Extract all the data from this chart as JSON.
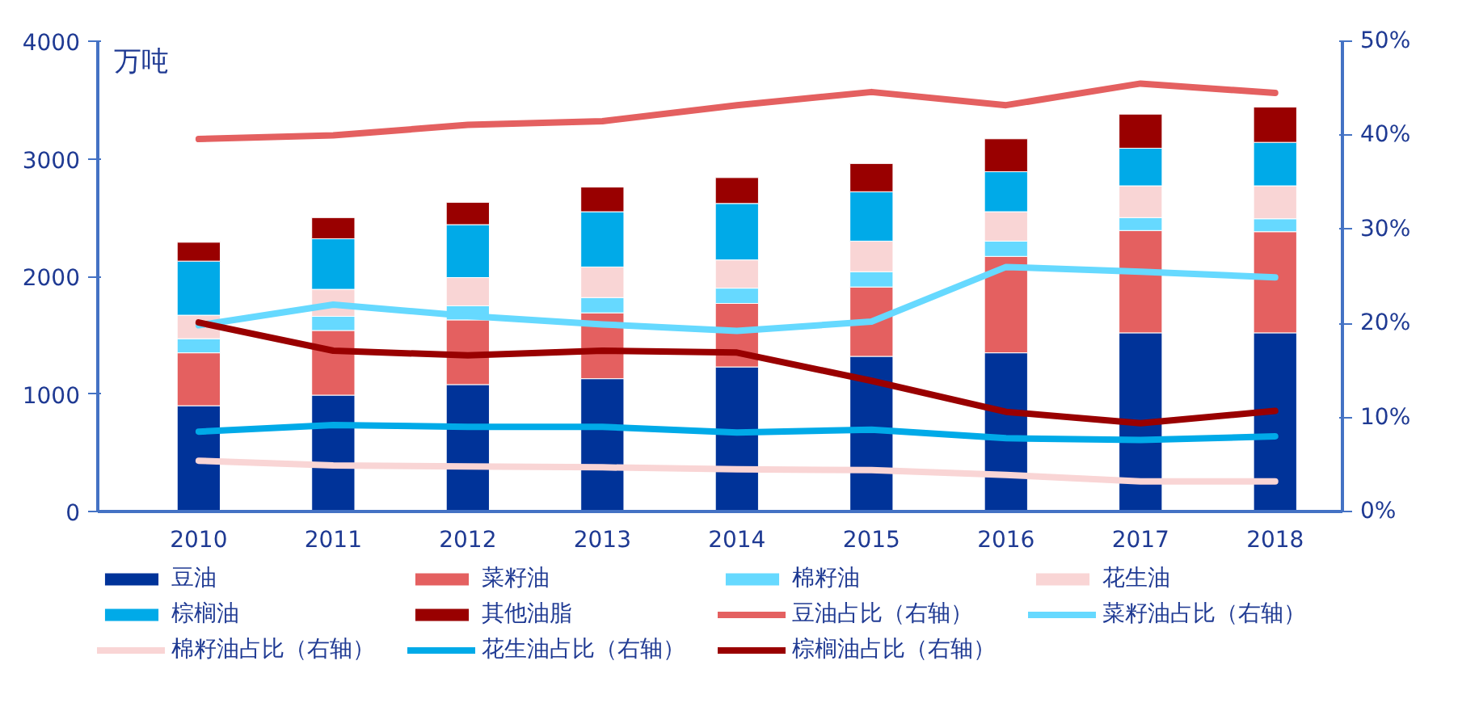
{
  "chart_data": {
    "type": "bar",
    "stacked": true,
    "ylabel": "万吨",
    "categories": [
      "2010",
      "2011",
      "2012",
      "2013",
      "2014",
      "2015",
      "2016",
      "2017",
      "2018"
    ],
    "ylim": [
      0,
      4000
    ],
    "yticks": [
      0,
      1000,
      2000,
      3000,
      4000
    ],
    "y2lim": [
      0,
      50
    ],
    "y2ticks": [
      {
        "value": 0,
        "label": "0%"
      },
      {
        "value": 10,
        "label": "10%"
      },
      {
        "value": 20,
        "label": "20%"
      },
      {
        "value": 30,
        "label": "30%"
      },
      {
        "value": 40,
        "label": "40%"
      },
      {
        "value": 50,
        "label": "50%"
      }
    ],
    "grid": false,
    "legend": "bottom",
    "line_style": "solid",
    "marker": "none",
    "series": [
      {
        "name": "豆油",
        "color": "#003399",
        "values": [
          900,
          990,
          1080,
          1130,
          1230,
          1320,
          1350,
          1520,
          1520
        ]
      },
      {
        "name": "菜籽油",
        "color": "#e46060",
        "values": [
          450,
          550,
          550,
          560,
          540,
          590,
          820,
          870,
          860
        ]
      },
      {
        "name": "棉籽油",
        "color": "#66d9ff",
        "values": [
          120,
          120,
          120,
          130,
          130,
          130,
          130,
          110,
          110
        ]
      },
      {
        "name": "花生油",
        "color": "#f9d5d5",
        "values": [
          200,
          230,
          240,
          260,
          240,
          260,
          250,
          270,
          280
        ]
      },
      {
        "name": "棕榈油",
        "color": "#00aae8",
        "values": [
          460,
          430,
          450,
          470,
          480,
          420,
          340,
          320,
          370
        ]
      },
      {
        "name": "其他油脂",
        "color": "#990000",
        "values": [
          160,
          180,
          190,
          210,
          220,
          240,
          280,
          290,
          300
        ]
      },
      {
        "name": "豆油占比（右轴）",
        "type": "line",
        "axis": "y2",
        "color": "#e46060",
        "values": [
          39.6,
          40.0,
          41.1,
          41.5,
          43.2,
          44.6,
          43.2,
          45.5,
          44.5
        ]
      },
      {
        "name": "菜籽油占比（右轴）",
        "type": "line",
        "axis": "y2",
        "color": "#66d9ff",
        "values": [
          19.8,
          22.0,
          20.8,
          19.9,
          19.2,
          20.2,
          26.0,
          25.5,
          24.9
        ]
      },
      {
        "name": "棉籽油占比（右轴）",
        "type": "line",
        "axis": "y2",
        "color": "#f9d5d5",
        "values": [
          5.4,
          4.9,
          4.8,
          4.7,
          4.5,
          4.4,
          3.9,
          3.2,
          3.2
        ]
      },
      {
        "name": "花生油占比（右轴）",
        "type": "line",
        "axis": "y2",
        "color": "#00aae8",
        "values": [
          8.5,
          9.2,
          9.0,
          9.0,
          8.4,
          8.7,
          7.8,
          7.6,
          8.0
        ]
      },
      {
        "name": "棕榈油占比（右轴）",
        "type": "line",
        "axis": "y2",
        "color": "#990000",
        "values": [
          20.1,
          17.1,
          16.6,
          17.1,
          16.9,
          13.9,
          10.6,
          9.4,
          10.7
        ]
      }
    ]
  }
}
